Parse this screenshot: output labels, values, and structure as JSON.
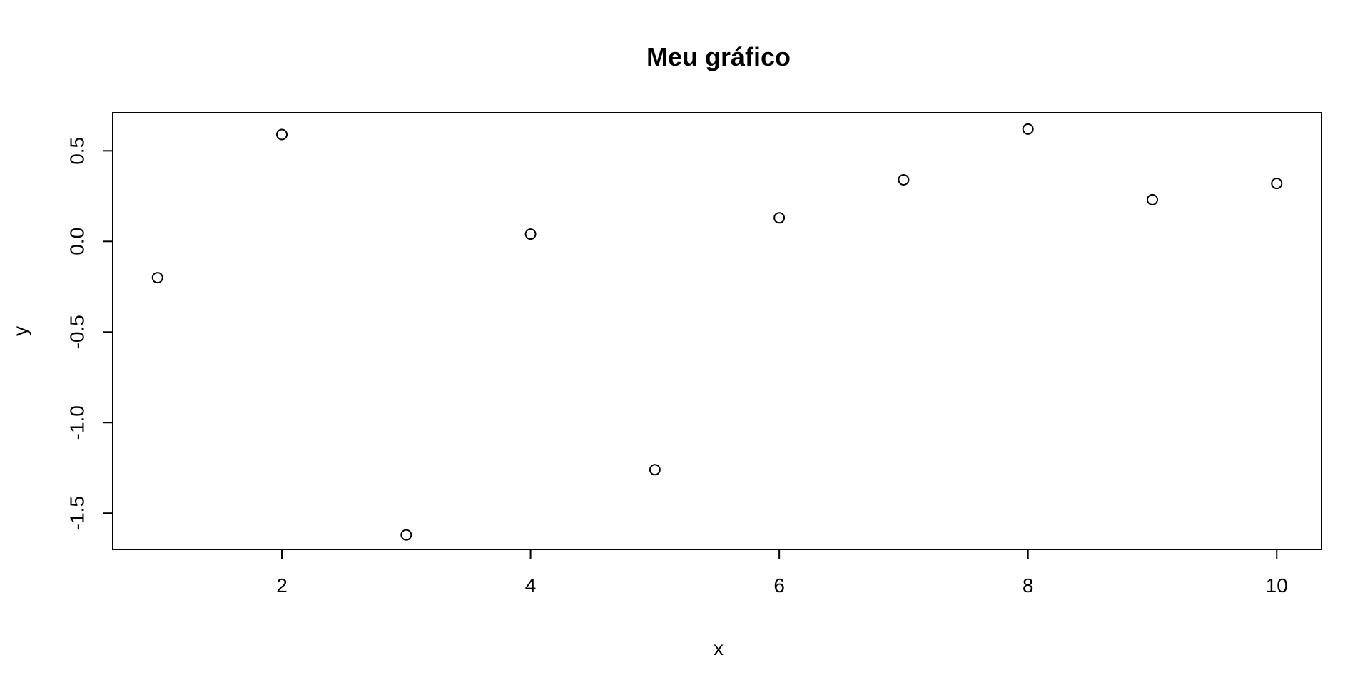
{
  "chart_data": {
    "type": "scatter",
    "title": "Meu gráfico",
    "xlabel": "x",
    "ylabel": "y",
    "xlim": [
      0.64,
      10.36
    ],
    "ylim": [
      -1.7,
      0.71
    ],
    "x_ticks": [
      2,
      4,
      6,
      8,
      10
    ],
    "x_tick_labels": [
      "2",
      "4",
      "6",
      "8",
      "10"
    ],
    "y_ticks": [
      -1.5,
      -1.0,
      -0.5,
      0.0,
      0.5
    ],
    "y_tick_labels": [
      "-1.5",
      "-1.0",
      "-0.5",
      "0.0",
      "0.5"
    ],
    "grid": false,
    "legend": "none",
    "marker": "open-circle",
    "colors": {
      "point_stroke": "#000000",
      "frame": "#000000",
      "background": "#ffffff"
    },
    "series": [
      {
        "x": [
          1,
          2,
          3,
          4,
          5,
          6,
          7,
          8,
          9,
          10
        ],
        "y": [
          -0.2,
          0.59,
          -1.62,
          0.04,
          -1.26,
          0.13,
          0.34,
          0.62,
          0.23,
          0.32
        ]
      }
    ]
  }
}
